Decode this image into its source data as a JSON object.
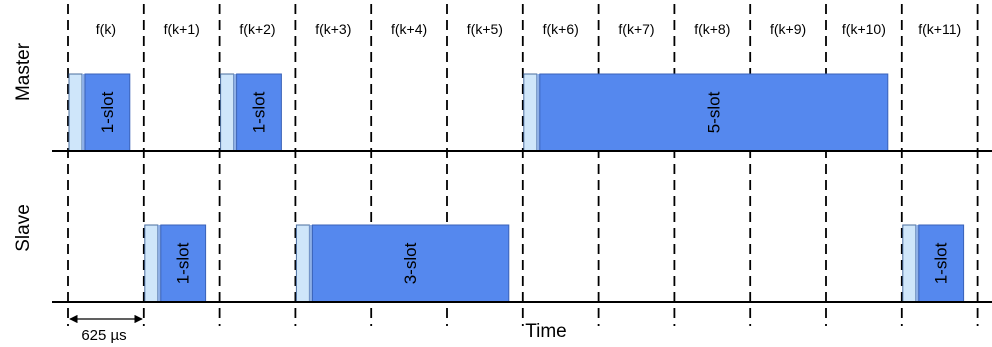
{
  "slot_labels": [
    "f(k)",
    "f(k+1)",
    "f(k+2)",
    "f(k+3)",
    "f(k+4)",
    "f(k+5)",
    "f(k+6)",
    "f(k+7)",
    "f(k+8)",
    "f(k+9)",
    "f(k+10)",
    "f(k+11)"
  ],
  "rows": {
    "master": "Master",
    "slave": "Slave"
  },
  "packets": [
    {
      "row": "master",
      "start_slot": 0,
      "slots": 1,
      "label": "1-slot"
    },
    {
      "row": "master",
      "start_slot": 2,
      "slots": 1,
      "label": "1-slot"
    },
    {
      "row": "master",
      "start_slot": 6,
      "slots": 5,
      "label": "5-slot"
    },
    {
      "row": "slave",
      "start_slot": 1,
      "slots": 1,
      "label": "1-slot"
    },
    {
      "row": "slave",
      "start_slot": 3,
      "slots": 3,
      "label": "3-slot"
    },
    {
      "row": "slave",
      "start_slot": 11,
      "slots": 1,
      "label": "1-slot"
    }
  ],
  "slot_duration_label": "625 µs",
  "axis_label": "Time",
  "colors": {
    "packet": "#5588ee",
    "packet_header": "#cfe6fa",
    "line": "#000000"
  }
}
